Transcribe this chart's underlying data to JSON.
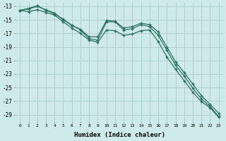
{
  "xlabel": "Humidex (Indice chaleur)",
  "ylabel": "",
  "background_color": "#ceeaea",
  "grid_color": "#aed0d0",
  "line_color": "#2d7060",
  "xlim": [
    -0.5,
    23.5
  ],
  "ylim": [
    -30.0,
    -12.5
  ],
  "yticks": [
    -13,
    -15,
    -17,
    -19,
    -21,
    -23,
    -25,
    -27,
    -29
  ],
  "xticks": [
    0,
    1,
    2,
    3,
    4,
    5,
    6,
    7,
    8,
    9,
    10,
    11,
    12,
    13,
    14,
    15,
    16,
    17,
    18,
    19,
    20,
    21,
    22,
    23
  ],
  "series": [
    [
      -13.6,
      -13.4,
      -13.0,
      -13.5,
      -14.0,
      -15.0,
      -15.8,
      -16.5,
      -17.8,
      -18.0,
      -15.3,
      -15.3,
      -16.5,
      -16.3,
      -15.7,
      -16.0,
      -17.3,
      -19.5,
      -21.7,
      -23.3,
      -25.1,
      -26.7,
      -27.8,
      -29.3
    ],
    [
      -13.6,
      -13.3,
      -12.9,
      -13.6,
      -14.1,
      -14.9,
      -15.8,
      -16.4,
      -17.5,
      -17.5,
      -15.1,
      -15.2,
      -16.2,
      -16.0,
      -15.5,
      -15.7,
      -16.8,
      -19.0,
      -21.2,
      -22.8,
      -24.5,
      -26.2,
      -27.5,
      -28.8
    ],
    [
      -13.6,
      -13.8,
      -13.5,
      -13.9,
      -14.3,
      -15.3,
      -16.2,
      -17.0,
      -18.0,
      -18.3,
      -16.5,
      -16.6,
      -17.3,
      -17.1,
      -16.6,
      -16.5,
      -18.2,
      -20.5,
      -22.3,
      -24.0,
      -25.7,
      -27.1,
      -28.0,
      -29.4
    ]
  ]
}
